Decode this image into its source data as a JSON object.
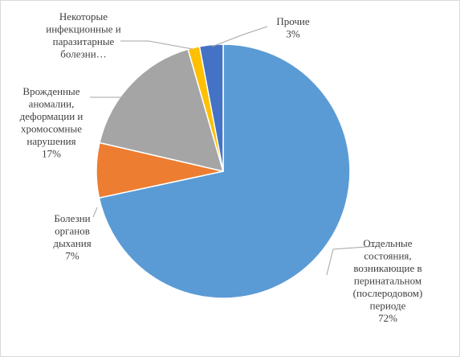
{
  "chart_data": {
    "type": "pie",
    "title": "",
    "start_angle_deg": 0,
    "direction": "clockwise",
    "slices": [
      {
        "name": "Отдельные состояния, возникающие в перинатальном (послеродовом) периоде",
        "value": 72,
        "label_lines": [
          "Отдельные",
          "состояния,",
          "возникающие в",
          "перинатальном",
          "(послеродовом)",
          "периоде",
          "72%"
        ],
        "color": "#5b9bd5",
        "label_side": "right"
      },
      {
        "name": "Болезни органов дыхания",
        "value": 7,
        "label_lines": [
          "Болезни",
          "органов",
          "дыхания",
          "7%"
        ],
        "color": "#ed7d31",
        "label_side": "left"
      },
      {
        "name": "Врожденные аномалии, деформации и хромосомные нарушения",
        "value": 17,
        "label_lines": [
          "Врожденные",
          "аномалии,",
          "деформации и",
          "хромосомные",
          "нарушения",
          "17%"
        ],
        "color": "#a5a5a5",
        "label_side": "left"
      },
      {
        "name": "Некоторые инфекционные и паразитарные болезни…",
        "value": 1.5,
        "label_lines": [
          "Некоторые",
          "инфекционные  и",
          "паразитарные",
          "болезни…"
        ],
        "color": "#ffc000",
        "label_side": "left"
      },
      {
        "name": "Прочие",
        "value": 3,
        "label_lines": [
          "Прочие",
          "3%"
        ],
        "color": "#4472c4",
        "label_side": "right"
      }
    ],
    "legend": "none"
  }
}
